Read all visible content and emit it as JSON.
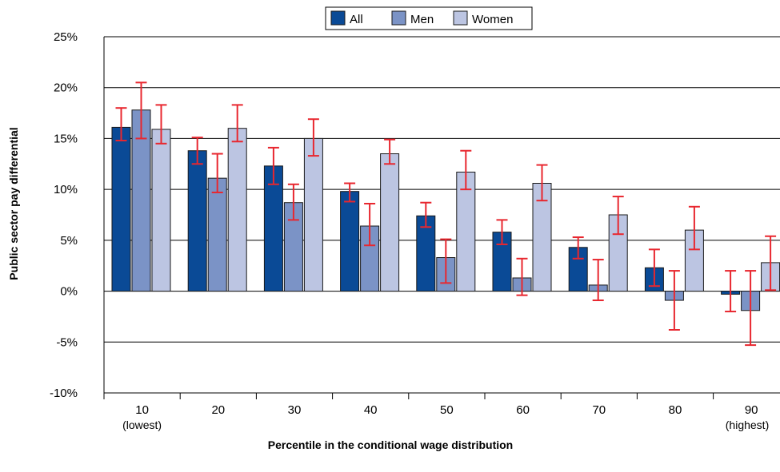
{
  "chart_data": {
    "type": "bar",
    "xlabel": "Percentile in the conditional wage distribution",
    "ylabel": "Public sector pay differential",
    "ylim": [
      -10,
      25
    ],
    "yticks": [
      -10,
      -5,
      0,
      5,
      10,
      15,
      20,
      25
    ],
    "ytick_suffix": "%",
    "grid": "horizontal",
    "legend_position": "top",
    "categories": [
      "10",
      "20",
      "30",
      "40",
      "50",
      "60",
      "70",
      "80",
      "90"
    ],
    "category_sublabels": [
      "(lowest)",
      "",
      "",
      "",
      "",
      "",
      "",
      "",
      "(highest)"
    ],
    "error_bar_color": "#e8272f",
    "series": [
      {
        "name": "All",
        "color": "#0a4a96",
        "values": [
          16.1,
          13.8,
          12.3,
          9.8,
          7.4,
          5.8,
          4.3,
          2.3,
          -0.3
        ],
        "err_low": [
          14.8,
          12.5,
          10.5,
          8.8,
          6.3,
          4.6,
          3.2,
          0.5,
          -2.0
        ],
        "err_high": [
          18.0,
          15.1,
          14.1,
          10.6,
          8.7,
          7.0,
          5.3,
          4.1,
          2.0
        ]
      },
      {
        "name": "Men",
        "color": "#7b93c6",
        "values": [
          17.8,
          11.1,
          8.7,
          6.4,
          3.3,
          1.3,
          0.6,
          -0.9,
          -1.9
        ],
        "err_low": [
          15.0,
          9.7,
          7.0,
          4.5,
          0.8,
          -0.4,
          -0.9,
          -3.8,
          -5.3
        ],
        "err_high": [
          20.5,
          13.5,
          10.5,
          8.6,
          5.1,
          3.2,
          3.1,
          2.0,
          2.0
        ]
      },
      {
        "name": "Women",
        "color": "#bcc5e2",
        "values": [
          15.9,
          16.0,
          15.0,
          13.5,
          11.7,
          10.6,
          7.5,
          6.0,
          2.8
        ],
        "err_low": [
          14.5,
          14.7,
          13.3,
          12.5,
          10.0,
          8.9,
          5.6,
          4.1,
          0.1
        ],
        "err_high": [
          18.3,
          18.3,
          16.9,
          14.9,
          13.8,
          12.4,
          9.3,
          8.3,
          5.4
        ]
      }
    ]
  }
}
